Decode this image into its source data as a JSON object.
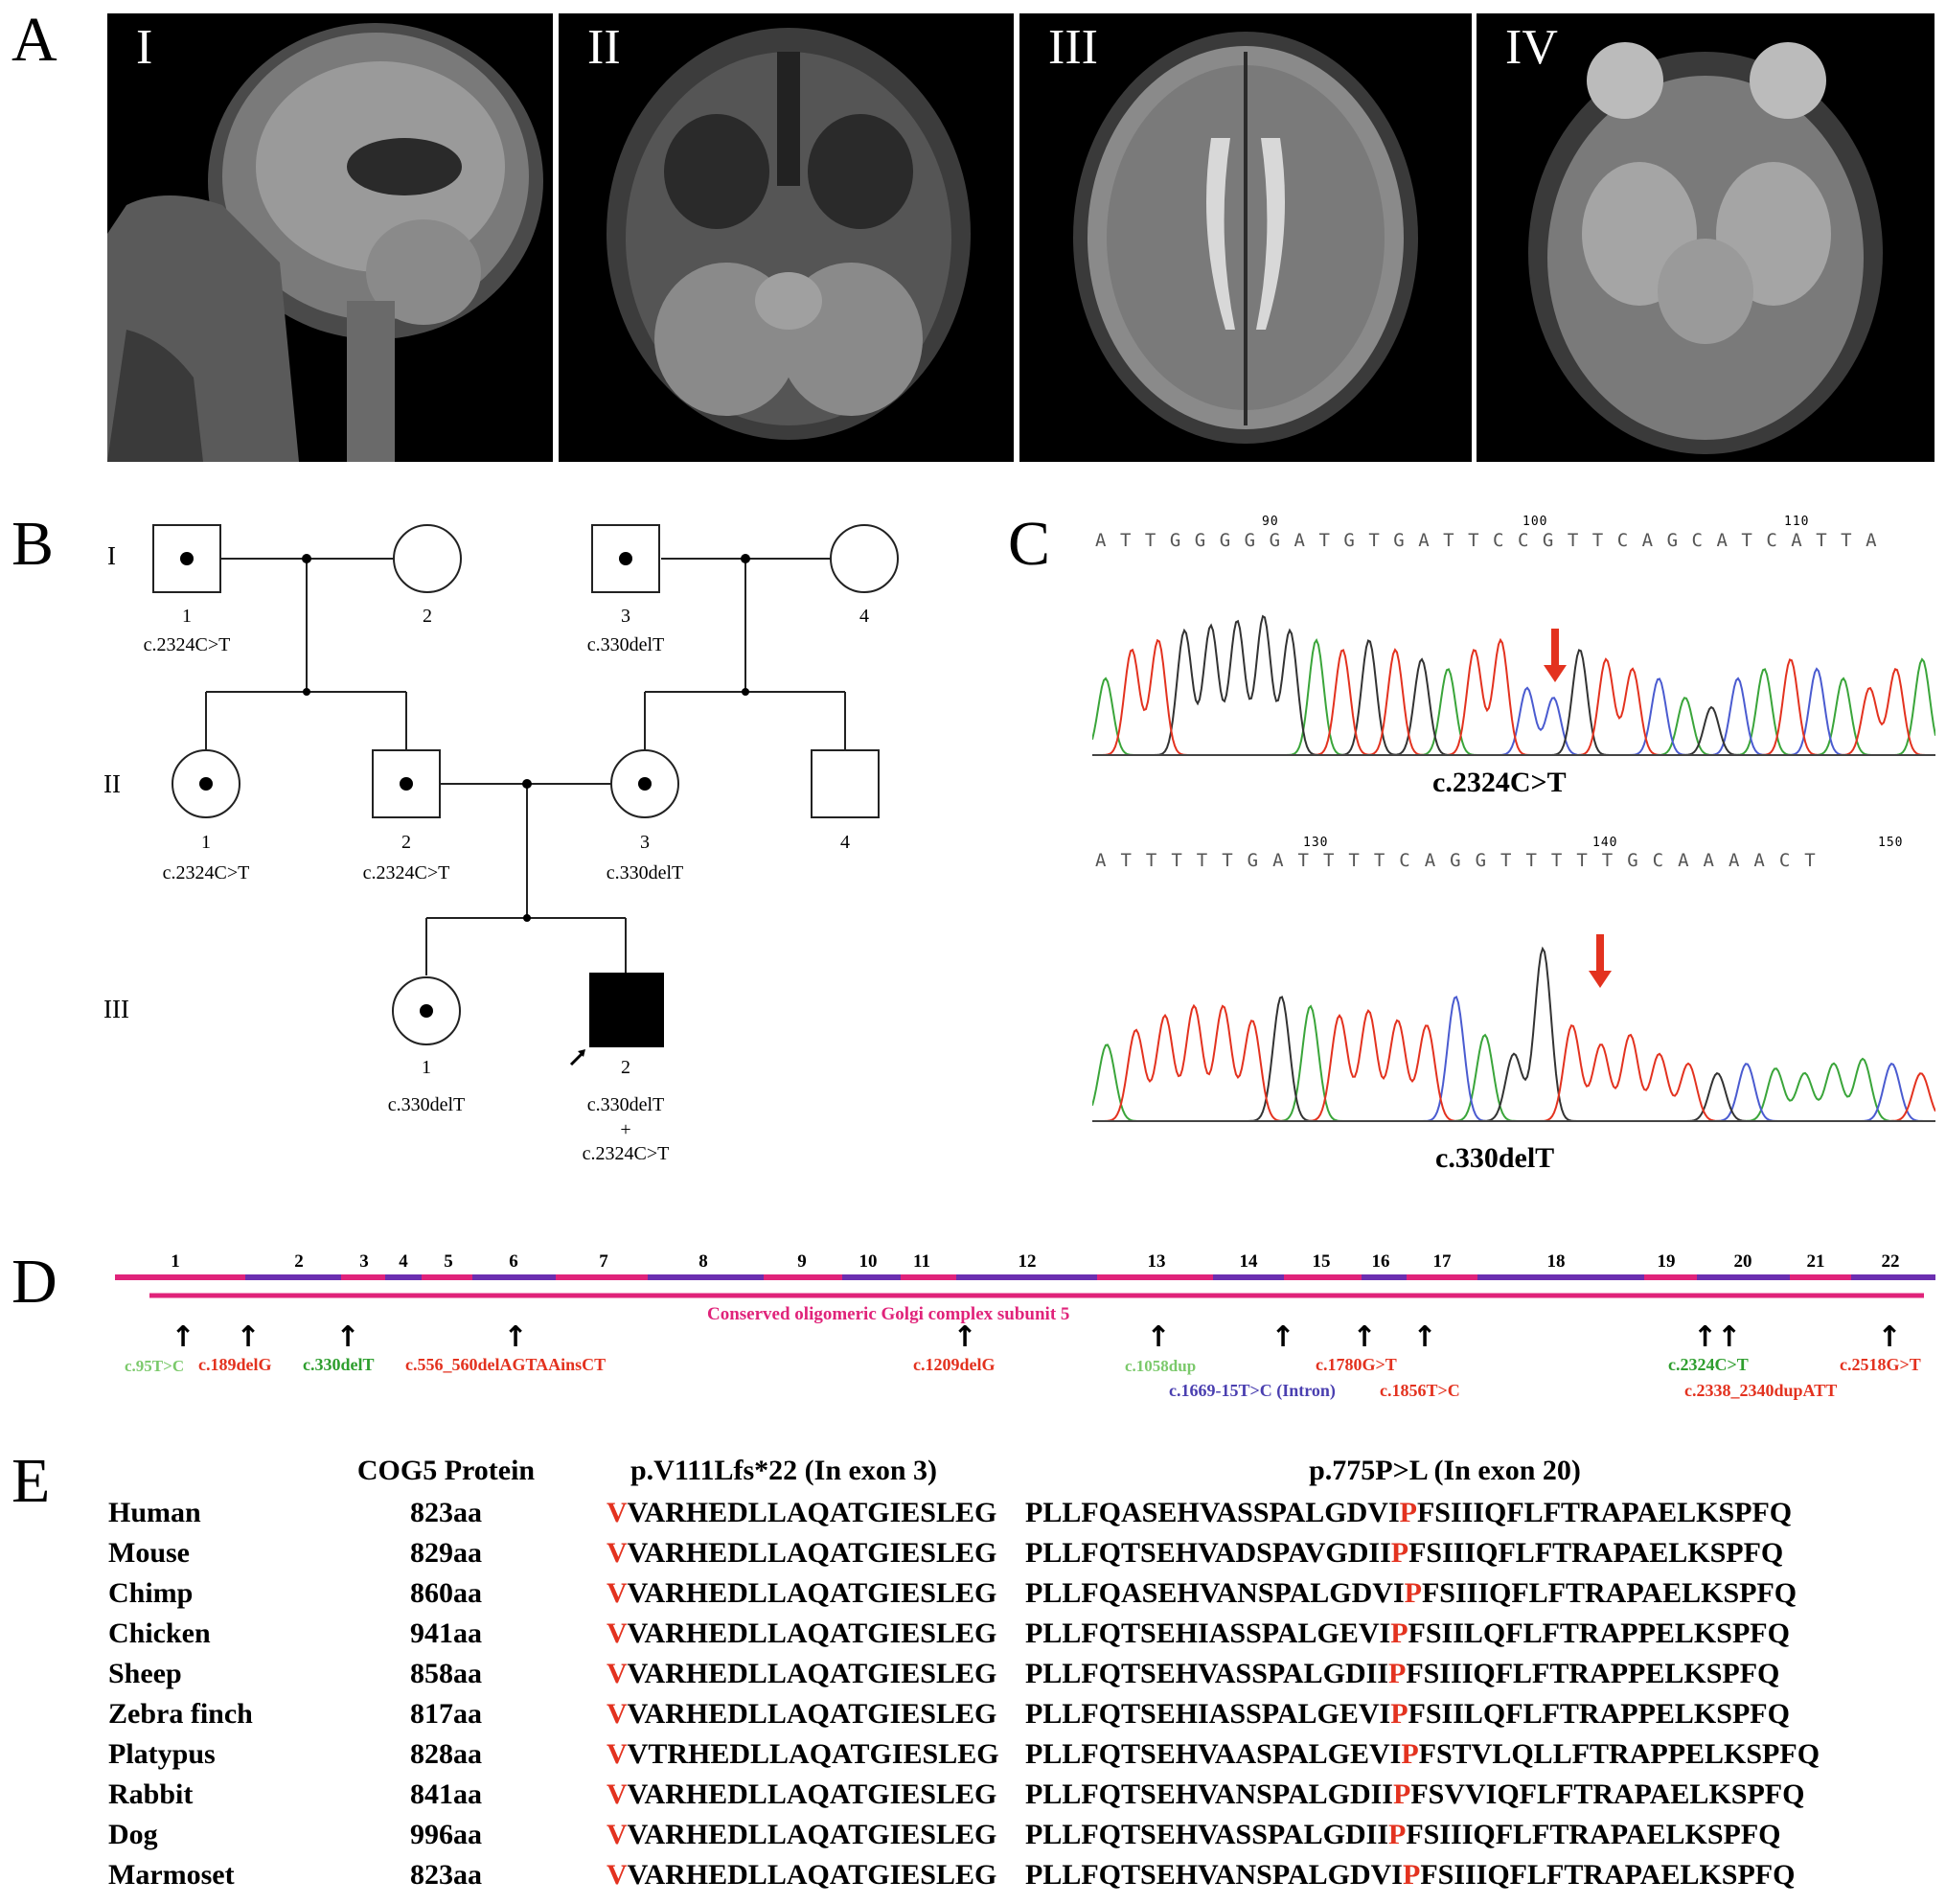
{
  "panels": {
    "a": "A",
    "b": "B",
    "c": "C",
    "d": "D",
    "e": "E"
  },
  "mri": {
    "labels": [
      "I",
      "II",
      "III",
      "IV"
    ]
  },
  "pedigree": {
    "generations": [
      "I",
      "II",
      "III"
    ],
    "individuals": [
      {
        "id": "I-1",
        "num": "1",
        "genotype": "c.2324C>T",
        "sex": "male",
        "status": "carrier"
      },
      {
        "id": "I-2",
        "num": "2",
        "genotype": "",
        "sex": "female",
        "status": "normal"
      },
      {
        "id": "I-3",
        "num": "3",
        "genotype": "c.330delT",
        "sex": "male",
        "status": "carrier"
      },
      {
        "id": "I-4",
        "num": "4",
        "genotype": "",
        "sex": "female",
        "status": "normal"
      },
      {
        "id": "II-1",
        "num": "1",
        "genotype": "c.2324C>T",
        "sex": "female",
        "status": "carrier"
      },
      {
        "id": "II-2",
        "num": "2",
        "genotype": "c.2324C>T",
        "sex": "male",
        "status": "carrier"
      },
      {
        "id": "II-3",
        "num": "3",
        "genotype": "c.330delT",
        "sex": "female",
        "status": "carrier"
      },
      {
        "id": "II-4",
        "num": "4",
        "genotype": "",
        "sex": "male",
        "status": "normal"
      },
      {
        "id": "III-1",
        "num": "1",
        "genotype": "c.330delT",
        "sex": "female",
        "status": "carrier"
      },
      {
        "id": "III-2",
        "num": "2",
        "genotype": "c.330delT",
        "genotype2": "c.2324C>T",
        "plus": "+",
        "sex": "male",
        "status": "affected"
      }
    ]
  },
  "chromatogram": {
    "top": {
      "sequence": "ATTGGGGGATGTGATTCCGTTCAGCATCATTA",
      "positions": [
        "90",
        "100",
        "110"
      ],
      "mutation": "c.2324C>T"
    },
    "bottom": {
      "sequence": "ATTTTTGATTTTCAGGTTTTTGCAAAACT",
      "positions": [
        "130",
        "140",
        "150"
      ],
      "mutation": "c.330delT"
    },
    "colors": {
      "A": "#3aa53a",
      "C": "#4a5bd0",
      "G": "#333333",
      "T": "#e3321f"
    },
    "arrow_color": "#e3321f"
  },
  "gene_map": {
    "exons": [
      "1",
      "2",
      "3",
      "4",
      "5",
      "6",
      "7",
      "8",
      "9",
      "10",
      "11",
      "12",
      "13",
      "14",
      "15",
      "16",
      "17",
      "18",
      "19",
      "20",
      "21",
      "22"
    ],
    "domain_label": "Conserved oligomeric Golgi complex subunit 5",
    "colors": {
      "pink": "#e0237a",
      "purple": "#6b2fb0"
    },
    "variants": [
      {
        "label": "c.95T>C",
        "color": "#7bc96b"
      },
      {
        "label": "c.189delG",
        "color": "#e3321f"
      },
      {
        "label": "c.330delT",
        "color": "#2e9e2e"
      },
      {
        "label": "c.556_560delAGTAAinsCT",
        "color": "#e3321f"
      },
      {
        "label": "c.1209delG",
        "color": "#e3321f"
      },
      {
        "label": "c.1058dup",
        "color": "#7bc96b"
      },
      {
        "label": "c.1669-15T>C (Intron)",
        "color": "#4a3fb0"
      },
      {
        "label": "c.1780G>T",
        "color": "#e3321f"
      },
      {
        "label": "c.1856T>C",
        "color": "#e3321f"
      },
      {
        "label": "c.2324C>T",
        "color": "#2e9e2e"
      },
      {
        "label": "c.2338_2340dupATT",
        "color": "#e3321f"
      },
      {
        "label": "c.2518G>T",
        "color": "#e3321f"
      }
    ]
  },
  "alignment": {
    "headers": {
      "protein": "COG5 Protein",
      "mut1": "p.V111Lfs*22 (In exon 3)",
      "mut2": "p.775P>L (In exon 20)"
    },
    "rows": [
      {
        "species": "Human",
        "length": "823aa",
        "s1a": "V",
        "s1b": "VARHEDLLAQATGIESLEG",
        "s2a": "PLLFQASEHVASSPALGDVI",
        "s2b": "P",
        "s2c": "FSIIIQFLFTRAPAELKSPFQ"
      },
      {
        "species": "Mouse",
        "length": "829aa",
        "s1a": "V",
        "s1b": "VARHEDLLAQATGIESLEG",
        "s2a": "PLLFQTSEHVADSPAVGDII",
        "s2b": "P",
        "s2c": "FSIIIQFLFTRAPAELKSPFQ"
      },
      {
        "species": "Chimp",
        "length": "860aa",
        "s1a": "V",
        "s1b": "VARHEDLLAQATGIESLEG",
        "s2a": "PLLFQASEHVANSPALGDVI",
        "s2b": "P",
        "s2c": "FSIIIQFLFTRAPAELKSPFQ"
      },
      {
        "species": "Chicken",
        "length": "941aa",
        "s1a": "V",
        "s1b": "VARHEDLLAQATGIESLEG",
        "s2a": "PLLFQTSEHIASSPALGEVI",
        "s2b": "P",
        "s2c": "FSIILQFLFTRAPPELKSPFQ"
      },
      {
        "species": "Sheep",
        "length": "858aa",
        "s1a": "V",
        "s1b": "VARHEDLLAQATGIESLEG",
        "s2a": "PLLFQTSEHVASSPALGDII",
        "s2b": "P",
        "s2c": "FSIIIQFLFTRAPPELKSPFQ"
      },
      {
        "species": "Zebra finch",
        "length": "817aa",
        "s1a": "V",
        "s1b": "VARHEDLLAQATGIESLEG",
        "s2a": "PLLFQTSEHIASSPALGEVI",
        "s2b": "P",
        "s2c": "FSIILQFLFTRAPPELKSPFQ"
      },
      {
        "species": "Platypus",
        "length": "828aa",
        "s1a": "V",
        "s1b": "VTRHEDLLAQATGIESLEG",
        "s2a": "PLLFQTSEHVAASPALGEVI",
        "s2b": "P",
        "s2c": "FSTVLQLLFTRAPPELKSPFQ"
      },
      {
        "species": "Rabbit",
        "length": "841aa",
        "s1a": "V",
        "s1b": "VARHEDLLAQATGIESLEG",
        "s2a": "PLLFQTSEHVANSPALGDII",
        "s2b": "P",
        "s2c": "FSVVIQFLFTRAPAELKSPFQ"
      },
      {
        "species": "Dog",
        "length": "996aa",
        "s1a": "V",
        "s1b": "VARHEDLLAQATGIESLEG",
        "s2a": "PLLFQTSEHVASSPALGDII",
        "s2b": "P",
        "s2c": "FSIIIQFLFTRAPAELKSPFQ"
      },
      {
        "species": "Marmoset",
        "length": "823aa",
        "s1a": "V",
        "s1b": "VARHEDLLAQATGIESLEG",
        "s2a": "PLLFQTSEHVANSPALGDVI",
        "s2b": "P",
        "s2c": "FSIIIQFLFTRAPAELKSPFQ"
      }
    ]
  }
}
